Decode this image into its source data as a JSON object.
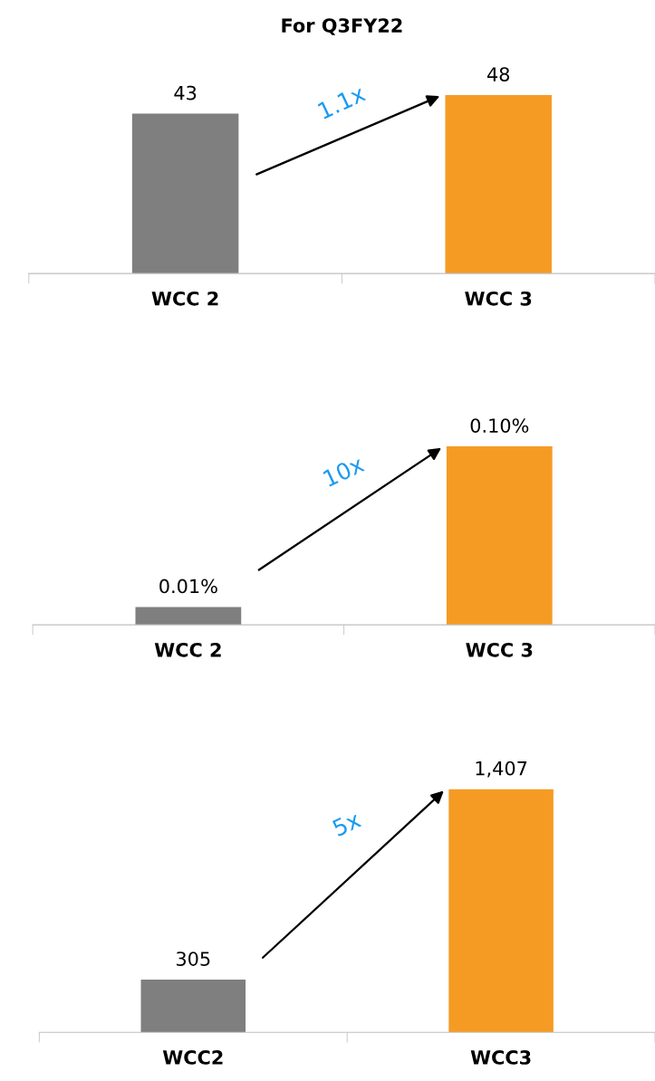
{
  "chart_data": [
    {
      "type": "bar",
      "title": "For Q3FY22",
      "categories": [
        "WCC 2",
        "WCC 3"
      ],
      "values": [
        43,
        48
      ],
      "colors": [
        "#7f7f7f",
        "#f59b23"
      ],
      "data_labels": true,
      "annotations": [
        "1.1x"
      ],
      "grid": false,
      "legend": false
    },
    {
      "type": "bar",
      "categories": [
        "WCC 2",
        "WCC 3"
      ],
      "values": [
        0.01,
        0.1
      ],
      "value_labels": [
        "0.01%",
        "0.10%"
      ],
      "colors": [
        "#7f7f7f",
        "#f59b23"
      ],
      "annotations": [
        "10x"
      ],
      "grid": false,
      "legend": false
    },
    {
      "type": "bar",
      "categories": [
        "WCC2",
        "WCC3"
      ],
      "values": [
        305,
        1407
      ],
      "value_labels": [
        "305",
        "1,407"
      ],
      "colors": [
        "#7f7f7f",
        "#f59b23"
      ],
      "annotations": [
        "5x"
      ],
      "grid": false,
      "legend": false
    }
  ]
}
